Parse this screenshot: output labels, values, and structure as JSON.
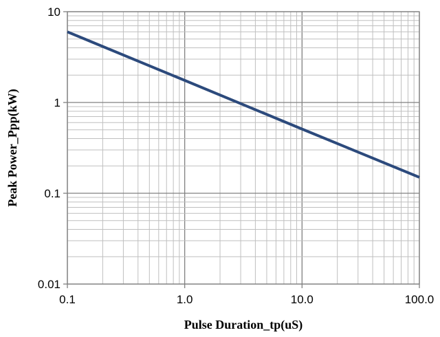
{
  "chart_data": {
    "type": "line",
    "title": "",
    "xlabel": "Pulse Duration_tp(uS)",
    "ylabel": "Peak Power_Ppp(kW)",
    "x_scale": "log",
    "y_scale": "log",
    "xlim": [
      0.1,
      100
    ],
    "ylim": [
      0.01,
      10
    ],
    "x_ticks": [
      0.1,
      1,
      10,
      100
    ],
    "x_tick_labels": [
      "0.1",
      "1.0",
      "10.0",
      "100.0"
    ],
    "y_ticks": [
      0.01,
      0.1,
      1,
      10
    ],
    "y_tick_labels": [
      "0.01",
      "0.1",
      "1",
      "10"
    ],
    "grid": true,
    "series": [
      {
        "x": [
          0.1,
          1,
          10,
          100
        ],
        "y": [
          6,
          1.75,
          0.51,
          0.15
        ]
      }
    ],
    "colors": {
      "line": "#2c4a7c",
      "grid": "#bfbfbf",
      "axis": "#808080"
    }
  }
}
